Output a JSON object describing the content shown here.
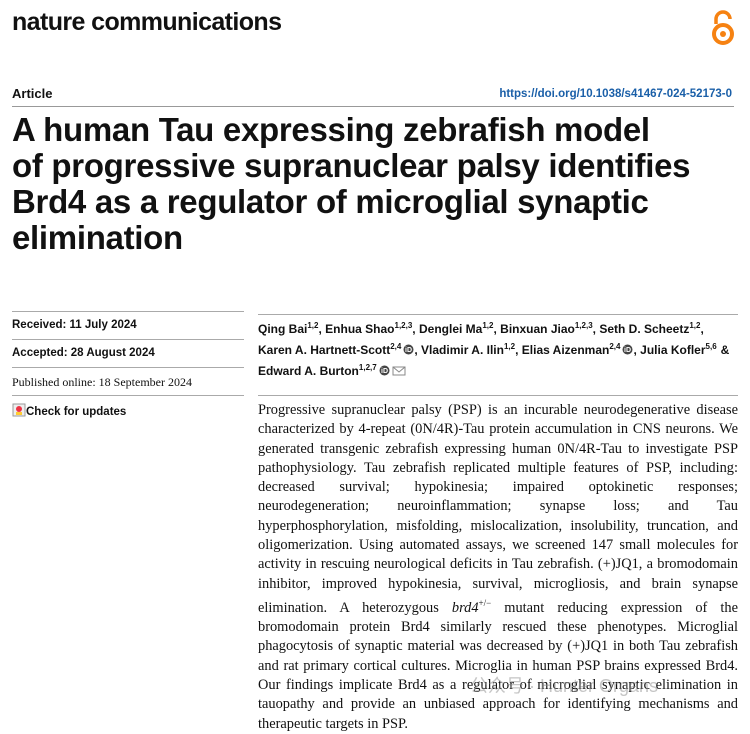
{
  "header": {
    "journal": "nature communications",
    "article_type": "Article",
    "doi": "https://doi.org/10.1038/s41467-024-52173-0"
  },
  "title_lines": [
    "A human Tau expressing zebrafish model",
    "of progressive supranuclear palsy identifies",
    "Brd4 as a regulator of microglial synaptic",
    "elimination"
  ],
  "dates": {
    "received": "Received: 11 July 2024",
    "accepted": "Accepted: 28 August 2024",
    "published": "Published online: 18 September 2024",
    "check": "Check for updates"
  },
  "authors": [
    {
      "name": "Qing Bai",
      "sup": "1,2",
      "sep": ","
    },
    {
      "name": "Enhua Shao",
      "sup": "1,2,3",
      "sep": ","
    },
    {
      "name": "Denglei Ma",
      "sup": "1,2",
      "sep": ","
    },
    {
      "name": "Binxuan Jiao",
      "sup": "1,2,3",
      "sep": ","
    },
    {
      "name": "Seth D. Scheetz",
      "sup": "1,2",
      "sep": ","
    },
    {
      "name": "Karen A. Hartnett-Scott",
      "sup": "2,4",
      "sep": ",",
      "orcid": true
    },
    {
      "name": "Vladimir A. Ilin",
      "sup": "1,2",
      "sep": ","
    },
    {
      "name": "Elias Aizenman",
      "sup": "2,4",
      "sep": ",",
      "orcid": true
    },
    {
      "name": "Julia Kofler",
      "sup": "5,6",
      "sep": "&"
    },
    {
      "name": "Edward A. Burton",
      "sup": "1,2,7",
      "orcid": true,
      "email": true
    }
  ],
  "abstract": [
    "Progressive supranuclear palsy (PSP) is an incurable neurodegenerative disease characterized by 4-repeat (0N/4R)-Tau protein accumulation in CNS neurons. We generated transgenic zebrafish expressing human 0N/4R-Tau to investigate PSP pathophysiology. Tau zebrafish replicated multiple features of PSP, including: decreased survival; hypokinesia; impaired optokinetic responses; neurodegeneration; neuroinflammation; synapse loss; and Tau hyperphosphorylation, misfolding, mislocalization, insolubility, truncation, and oligomerization. Using automated assays, we screened 147 small molecules for activity in rescuing neurological deficits in Tau zebrafish. (+)JQ1, a bromodomain inhibitor, improved hypokinesia, survival, microgliosis, and brain synapse elimination. A heterozygous ",
    "brd4",
    "+/−",
    " mutant reducing expression of the bromodomain protein Brd4 similarly rescued these phenotypes. Microglial phagocytosis of synaptic material was decreased by (+)JQ1 in both Tau zebrafish and rat primary cortical cultures. Microglia in human PSP brains expressed Brd4. Our findings implicate Brd4 as a regulator of microglial synaptic elimination in tauopathy and provide an unbiased approach for identifying mechanisms and therapeutic targets in PSP."
  ],
  "watermark": "公众号 · Hunter Organs"
}
